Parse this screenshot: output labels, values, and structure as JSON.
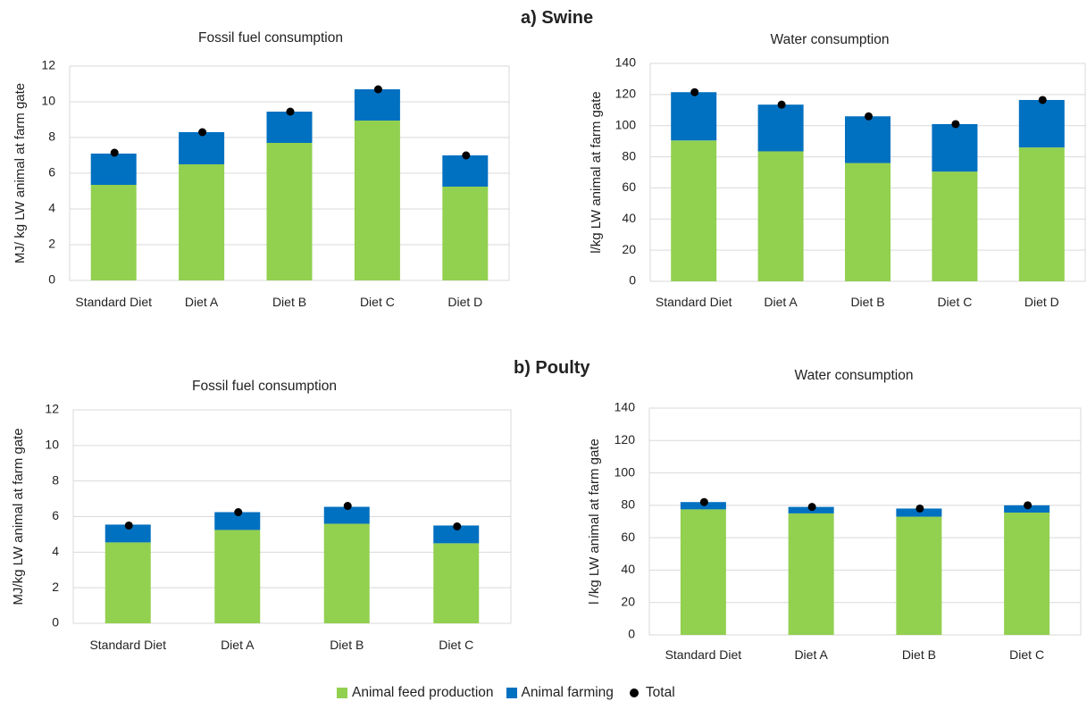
{
  "sections": {
    "swine_title": "a) Swine",
    "poultry_title": "b) Poulty"
  },
  "legend": {
    "feed": "Animal feed production",
    "farming": "Animal farming",
    "total": "Total"
  },
  "colors": {
    "feed": "#92d050",
    "farming": "#0070c0",
    "total": "#000000",
    "grid": "#d9d9d9"
  },
  "chart_data": [
    {
      "id": "swine-fossil",
      "type": "bar",
      "stacked": true,
      "title": "Fossil fuel consumption",
      "ylabel": "MJ/ kg LW animal at farm gate",
      "xlabel": "",
      "ylim": [
        0,
        12
      ],
      "yticks": [
        0,
        2,
        4,
        6,
        8,
        10,
        12
      ],
      "grid": true,
      "categories": [
        "Standard Diet",
        "Diet A",
        "Diet B",
        "Diet C",
        "Diet D"
      ],
      "series": [
        {
          "name": "Animal feed production",
          "values": [
            5.35,
            6.5,
            7.7,
            8.95,
            5.25
          ]
        },
        {
          "name": "Animal farming",
          "values": [
            1.75,
            1.8,
            1.75,
            1.75,
            1.75
          ]
        },
        {
          "name": "Total",
          "values": [
            7.15,
            8.3,
            9.45,
            10.7,
            7.0
          ]
        }
      ]
    },
    {
      "id": "swine-water",
      "type": "bar",
      "stacked": true,
      "title": "Water consumption",
      "ylabel": "l/kg LW animal at farm gate",
      "xlabel": "",
      "ylim": [
        0,
        140
      ],
      "yticks": [
        0,
        20,
        40,
        60,
        80,
        100,
        120,
        140
      ],
      "grid": true,
      "categories": [
        "Standard Diet",
        "Diet A",
        "Diet B",
        "Diet C",
        "Diet D"
      ],
      "series": [
        {
          "name": "Animal feed production",
          "values": [
            90.5,
            83.5,
            76,
            70.5,
            86
          ]
        },
        {
          "name": "Animal farming",
          "values": [
            31,
            30,
            30,
            30.5,
            30.5
          ]
        },
        {
          "name": "Total",
          "values": [
            121.5,
            113.5,
            106,
            101,
            116.5
          ]
        }
      ]
    },
    {
      "id": "poultry-fossil",
      "type": "bar",
      "stacked": true,
      "title": "Fossil fuel consumption",
      "ylabel": "MJ/kg LW animal  at farm gate",
      "xlabel": "",
      "ylim": [
        0,
        12
      ],
      "yticks": [
        0,
        2,
        4,
        6,
        8,
        10,
        12
      ],
      "grid": true,
      "categories": [
        "Standard Diet",
        "Diet A",
        "Diet B",
        "Diet C"
      ],
      "series": [
        {
          "name": "Animal feed production",
          "values": [
            4.55,
            5.25,
            5.6,
            4.5
          ]
        },
        {
          "name": "Animal farming",
          "values": [
            1.0,
            1.0,
            0.95,
            1.0
          ]
        },
        {
          "name": "Total",
          "values": [
            5.5,
            6.25,
            6.6,
            5.45
          ]
        }
      ]
    },
    {
      "id": "poultry-water",
      "type": "bar",
      "stacked": true,
      "title": "Water consumption",
      "ylabel": "l /kg  LW animal  at farm gate",
      "xlabel": "",
      "ylim": [
        0,
        140
      ],
      "yticks": [
        0,
        20,
        40,
        60,
        80,
        100,
        120,
        140
      ],
      "grid": true,
      "categories": [
        "Standard Diet",
        "Diet A",
        "Diet B",
        "Diet C"
      ],
      "series": [
        {
          "name": "Animal feed production",
          "values": [
            77.5,
            75,
            73,
            75.5
          ]
        },
        {
          "name": "Animal farming",
          "values": [
            4.5,
            4.0,
            5.0,
            4.5
          ]
        },
        {
          "name": "Total",
          "values": [
            82,
            79,
            78,
            80
          ]
        }
      ]
    }
  ]
}
